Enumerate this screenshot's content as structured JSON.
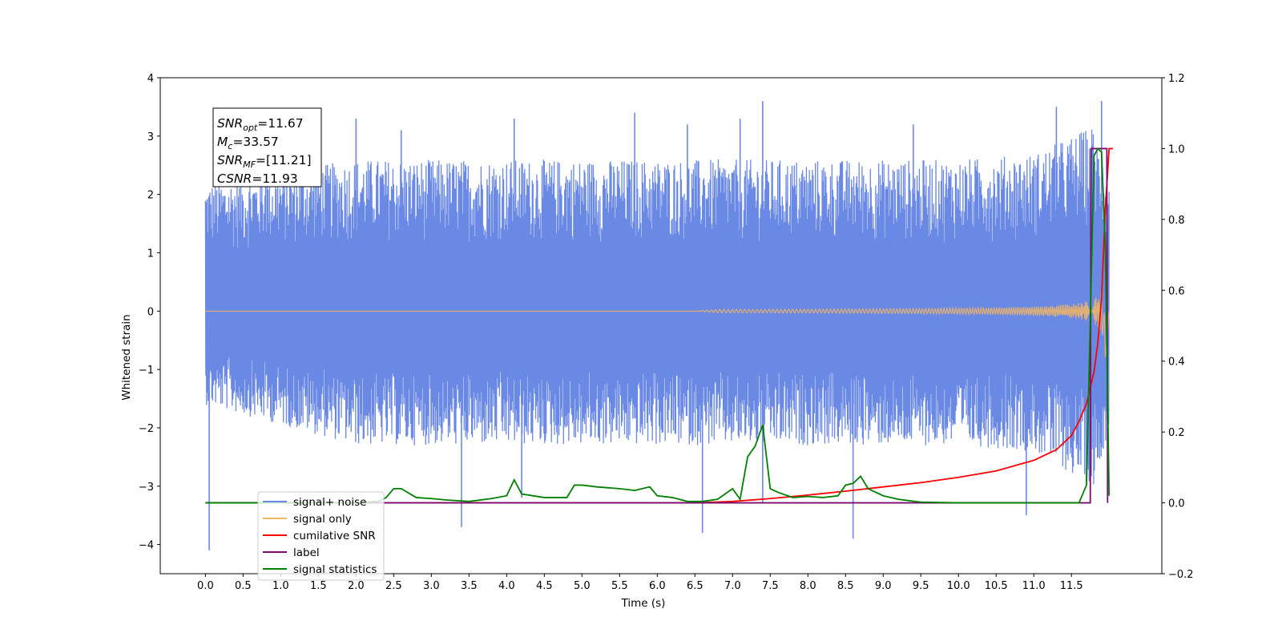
{
  "chart_data": {
    "type": "line",
    "xlabel": "Time (s)",
    "ylabel": "Whitened strain",
    "xlim": [
      -0.6,
      12.7
    ],
    "ylim": [
      -4.5,
      4.0
    ],
    "y2lim": [
      -0.2,
      1.2
    ],
    "x_ticks": [
      "0.0",
      "0.5",
      "1.0",
      "1.5",
      "2.0",
      "2.5",
      "3.0",
      "3.5",
      "4.0",
      "4.5",
      "5.0",
      "5.5",
      "6.0",
      "6.5",
      "7.0",
      "7.5",
      "8.0",
      "8.5",
      "9.0",
      "9.5",
      "10.0",
      "10.5",
      "11.0",
      "11.5"
    ],
    "y_ticks": [
      "4",
      "3",
      "2",
      "1",
      "0",
      "−1",
      "−2",
      "−3",
      "−4"
    ],
    "y2_ticks": [
      "1.2",
      "1.0",
      "0.8",
      "0.6",
      "0.4",
      "0.2",
      "0.0",
      "−0.2"
    ],
    "grid": false,
    "legend_position": "lower-left",
    "annotation": {
      "snr_opt": {
        "base": "SNR",
        "sub": "opt",
        "rest": "=11.67"
      },
      "mc": {
        "base": "M",
        "sub": "c",
        "rest": "=33.57"
      },
      "snr_mf": {
        "base": "SNR",
        "sub": "MF",
        "rest": "=[11.21]"
      },
      "csnr": {
        "base": "CSNR",
        "sub": "",
        "rest": "=11.93"
      }
    },
    "series": [
      {
        "name": "signal+ noise",
        "color": "#6a89e4",
        "axis": "left",
        "envelope_x": [
          0,
          2,
          4,
          6,
          8,
          10,
          11,
          11.5,
          11.8,
          12.0
        ],
        "envelope_upper": [
          2.2,
          2.6,
          2.6,
          2.6,
          2.6,
          2.6,
          2.7,
          3.0,
          3.2,
          2.2
        ],
        "envelope_lower": [
          -1.6,
          -2.3,
          -2.3,
          -2.3,
          -2.3,
          -2.3,
          -2.4,
          -2.8,
          -3.0,
          -2.0
        ],
        "spikes": [
          [
            0.05,
            -4.1
          ],
          [
            0.8,
            2.7
          ],
          [
            2.0,
            3.3
          ],
          [
            2.6,
            3.1
          ],
          [
            3.4,
            -3.7
          ],
          [
            4.1,
            3.3
          ],
          [
            4.2,
            -3.2
          ],
          [
            5.7,
            3.4
          ],
          [
            6.4,
            3.2
          ],
          [
            6.6,
            -3.8
          ],
          [
            7.1,
            3.3
          ],
          [
            7.4,
            3.6
          ],
          [
            7.4,
            -3.3
          ],
          [
            8.6,
            -3.9
          ],
          [
            9.4,
            3.2
          ],
          [
            10.9,
            -3.5
          ],
          [
            11.3,
            3.5
          ],
          [
            11.9,
            3.6
          ]
        ]
      },
      {
        "name": "signal only",
        "color": "#f5b660",
        "axis": "left",
        "chirp_start": 6.5,
        "chirp_end": 11.95,
        "amplitude_end": 0.8
      },
      {
        "name": "cumilative SNR",
        "color": "#ff0000",
        "axis": "right",
        "x": [
          0,
          6.5,
          7.0,
          7.5,
          8.0,
          8.5,
          9.0,
          9.5,
          10.0,
          10.5,
          11.0,
          11.3,
          11.5,
          11.6,
          11.7,
          11.8,
          11.85,
          11.9,
          11.95,
          12.0,
          12.05
        ],
        "y": [
          0.0,
          0.0,
          0.004,
          0.012,
          0.022,
          0.033,
          0.045,
          0.057,
          0.072,
          0.09,
          0.12,
          0.15,
          0.19,
          0.23,
          0.28,
          0.37,
          0.45,
          0.58,
          0.83,
          1.0,
          1.0
        ]
      },
      {
        "name": "label",
        "color": "#7b0c6e",
        "axis": "right",
        "x": [
          0,
          11.75,
          11.76,
          11.97,
          11.98
        ],
        "y": [
          0,
          0,
          1,
          1,
          0
        ]
      },
      {
        "name": "signal statistics",
        "color": "#008000",
        "axis": "right",
        "x": [
          0,
          2.0,
          2.3,
          2.4,
          2.5,
          2.6,
          2.8,
          3.0,
          3.2,
          3.5,
          3.8,
          4.0,
          4.1,
          4.2,
          4.5,
          4.8,
          4.9,
          5.0,
          5.2,
          5.5,
          5.7,
          5.9,
          6.0,
          6.2,
          6.4,
          6.6,
          6.8,
          6.9,
          7.0,
          7.1,
          7.2,
          7.3,
          7.4,
          7.5,
          7.6,
          7.8,
          8.0,
          8.2,
          8.4,
          8.5,
          8.6,
          8.7,
          8.8,
          9.0,
          9.2,
          9.5,
          10.0,
          11.0,
          11.6,
          11.7,
          11.8,
          11.85,
          11.9,
          11.95,
          12.0
        ],
        "y": [
          0,
          0,
          0.004,
          0.015,
          0.04,
          0.04,
          0.015,
          0.012,
          0.008,
          0.004,
          0.012,
          0.02,
          0.065,
          0.025,
          0.015,
          0.015,
          0.05,
          0.05,
          0.045,
          0.04,
          0.035,
          0.045,
          0.02,
          0.015,
          0.004,
          0.004,
          0.01,
          0.025,
          0.04,
          0.01,
          0.13,
          0.16,
          0.22,
          0.04,
          0.03,
          0.015,
          0.018,
          0.015,
          0.02,
          0.05,
          0.055,
          0.075,
          0.04,
          0.02,
          0.01,
          0.002,
          0,
          0,
          0,
          0.05,
          0.98,
          1.0,
          0.99,
          0.72,
          0.02
        ]
      }
    ]
  }
}
